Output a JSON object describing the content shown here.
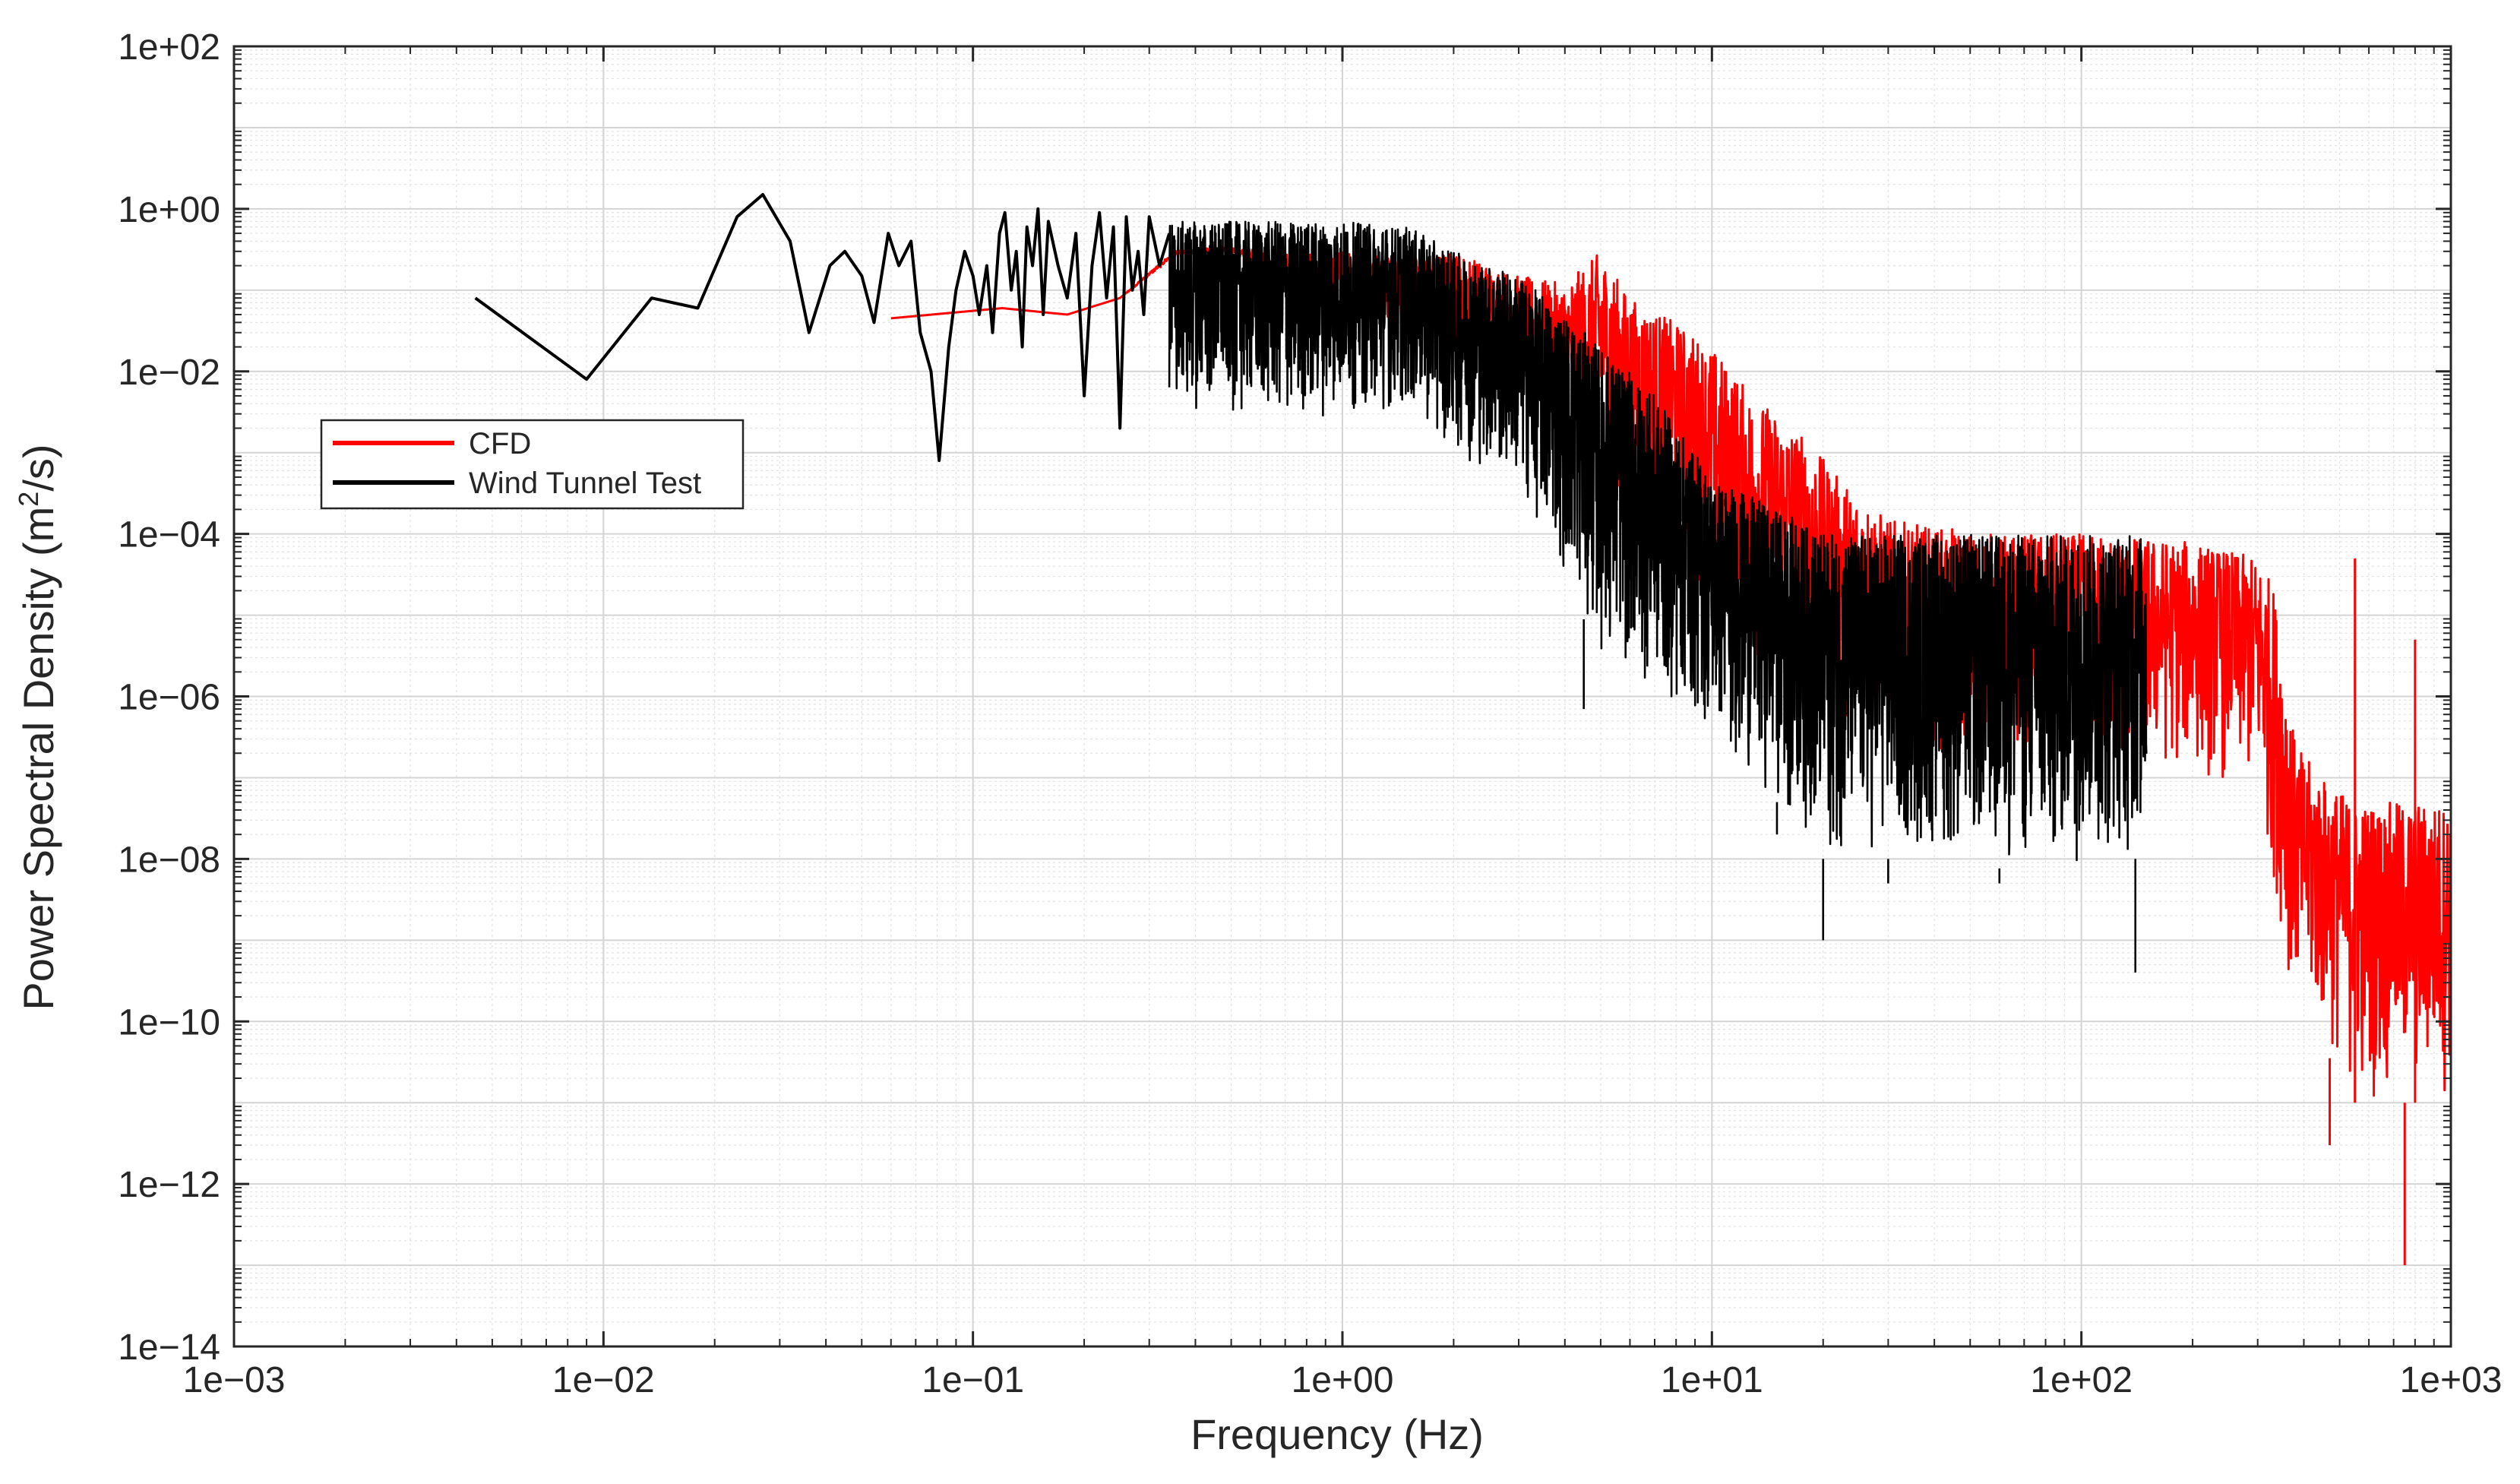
{
  "chart_data": {
    "type": "line",
    "xscale": "log",
    "yscale": "log",
    "xlabel": "Frequency (Hz)",
    "ylabel_parts": [
      "Power Spectral Density (m",
      "2",
      "/s)"
    ],
    "xlim": [
      0.001,
      1000
    ],
    "ylim": [
      1e-14,
      100
    ],
    "grid": true,
    "minor_grid": true,
    "legend_position": "upper-left",
    "xticks": [
      0.001,
      0.01,
      0.1,
      1,
      10,
      100,
      1000
    ],
    "xtick_labels": [
      "1e−03",
      "1e−02",
      "1e−01",
      "1e+00",
      "1e+01",
      "1e+02",
      "1e+03"
    ],
    "yticks": [
      100,
      1,
      0.01,
      0.0001,
      1e-06,
      1e-08,
      1e-10,
      1e-12,
      1e-14
    ],
    "ytick_labels": [
      "1e+02",
      "1e+00",
      "1e−02",
      "1e−04",
      "1e−06",
      "1e−08",
      "1e−10",
      "1e−12",
      "1e−14"
    ],
    "series": [
      {
        "name": "CFD",
        "color": "#ff0000",
        "envelope": {
          "x": [
            0.06,
            0.12,
            0.18,
            0.25,
            0.35,
            0.5,
            0.7,
            1.0,
            1.5,
            2.0,
            3.0,
            4.0,
            5.0,
            6.0,
            8.0,
            10,
            13,
            17,
            22,
            30,
            40,
            60,
            80,
            100,
            150,
            200,
            300,
            330,
            380,
            450,
            550,
            700,
            850,
            1000
          ],
          "upper": [
            0.045,
            0.06,
            0.05,
            0.08,
            0.3,
            0.35,
            0.28,
            0.3,
            0.25,
            0.3,
            0.15,
            0.12,
            0.3,
            0.08,
            0.04,
            0.02,
            0.005,
            0.002,
            0.0005,
            0.00015,
            0.00012,
            0.0001,
            0.0001,
            0.0001,
            9e-05,
            8e-05,
            5e-05,
            2.5e-05,
            2.5e-07,
            1e-07,
            5e-08,
            5e-08,
            5e-08,
            5e-08
          ],
          "lower": [
            0.045,
            0.06,
            0.05,
            0.08,
            0.25,
            0.3,
            0.1,
            0.06,
            0.04,
            0.02,
            0.005,
            0.001,
            0.0005,
            0.0002,
            5e-05,
            1e-05,
            2e-06,
            1e-06,
            5e-07,
            5e-07,
            2e-07,
            1e-07,
            1e-07,
            1e-07,
            1e-07,
            1e-07,
            5e-08,
            5e-09,
            1e-10,
            5e-11,
            1e-11,
            1e-11,
            1e-11,
            1e-11
          ]
        },
        "spikes": [
          [
            550,
            5e-05
          ],
          [
            800,
            5e-06
          ],
          [
            1000,
            7e-07
          ],
          [
            750,
            1e-13
          ],
          [
            470,
            3e-12
          ]
        ]
      },
      {
        "name": "Wind Tunnel Test",
        "color": "#000000",
        "points": {
          "x": [
            0.0045,
            0.009,
            0.0135,
            0.018,
            0.023,
            0.027,
            0.032,
            0.036,
            0.041,
            0.045,
            0.05,
            0.054,
            0.059,
            0.063,
            0.068,
            0.072,
            0.077,
            0.081,
            0.086,
            0.09,
            0.095,
            0.1,
            0.104,
            0.109,
            0.113,
            0.118,
            0.122,
            0.127,
            0.131,
            0.136,
            0.14,
            0.145,
            0.15,
            0.155,
            0.16,
            0.17,
            0.18,
            0.19,
            0.2,
            0.21,
            0.22,
            0.23,
            0.24,
            0.25,
            0.26,
            0.27,
            0.28,
            0.29,
            0.3,
            0.32,
            0.34
          ],
          "y": [
            0.08,
            0.008,
            0.08,
            0.06,
            0.8,
            1.5,
            0.4,
            0.03,
            0.2,
            0.3,
            0.15,
            0.04,
            0.5,
            0.2,
            0.4,
            0.03,
            0.01,
            0.0008,
            0.02,
            0.1,
            0.3,
            0.15,
            0.05,
            0.2,
            0.03,
            0.5,
            0.9,
            0.1,
            0.3,
            0.02,
            0.6,
            0.2,
            1.0,
            0.05,
            0.7,
            0.2,
            0.08,
            0.5,
            0.005,
            0.2,
            0.9,
            0.08,
            0.6,
            0.002,
            0.8,
            0.1,
            0.3,
            0.05,
            0.8,
            0.2,
            0.5
          ]
        },
        "envelope": {
          "x": [
            0.34,
            0.5,
            0.7,
            1.0,
            1.5,
            2.0,
            3.0,
            4.0,
            5.0,
            7.0,
            10,
            15,
            20,
            30,
            50,
            80,
            100,
            150
          ],
          "upper": [
            0.7,
            0.7,
            0.7,
            0.7,
            0.6,
            0.3,
            0.15,
            0.05,
            0.02,
            0.005,
            0.0005,
            0.0002,
            0.0001,
            0.0001,
            0.0001,
            0.0001,
            0.0001,
            0.0001
          ],
          "lower": [
            0.003,
            0.003,
            0.002,
            0.003,
            0.003,
            0.001,
            0.0003,
            3e-05,
            3e-06,
            1e-06,
            3e-07,
            5e-08,
            1e-08,
            1e-08,
            1e-08,
            5e-09,
            1e-08,
            1e-08
          ]
        },
        "spikes": [
          [
            4.5,
            7e-07
          ],
          [
            20,
            1e-09
          ],
          [
            15,
            2e-08
          ],
          [
            30,
            5e-09
          ],
          [
            60,
            5e-09
          ],
          [
            140,
            4e-10
          ],
          [
            110,
            1e-08
          ]
        ]
      }
    ]
  }
}
